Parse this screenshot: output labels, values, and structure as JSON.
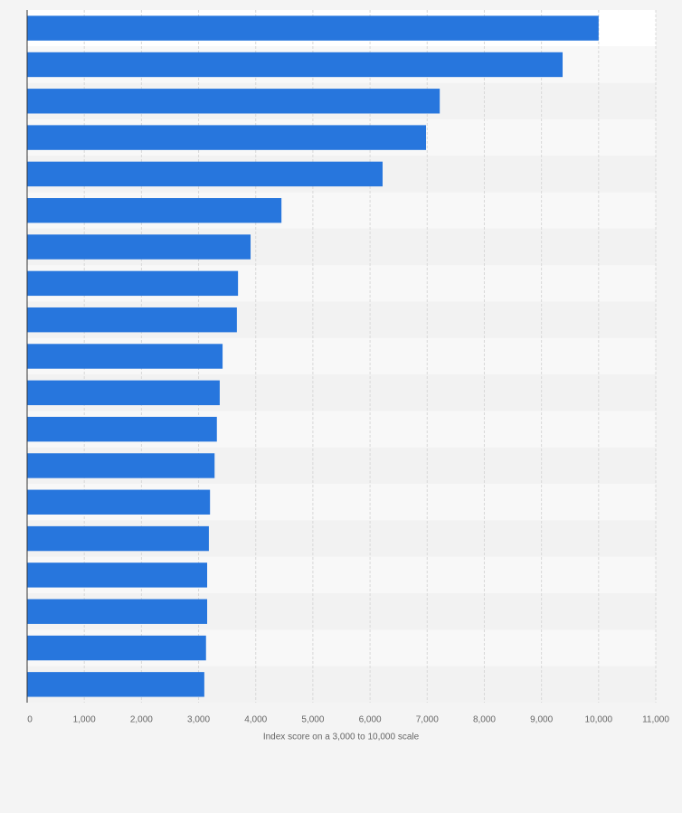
{
  "chart_data": {
    "type": "bar",
    "orientation": "horizontal",
    "categories": [
      null,
      null,
      null,
      null,
      null,
      null,
      null,
      null,
      null,
      null,
      null,
      null,
      null,
      null,
      null,
      null,
      null,
      null,
      null
    ],
    "values": [
      10000,
      9370,
      7220,
      6980,
      6220,
      4450,
      3910,
      3690,
      3670,
      3420,
      3370,
      3320,
      3280,
      3200,
      3180,
      3150,
      3150,
      3130,
      3100
    ],
    "color": "#2776dd",
    "xlim": [
      0,
      11000
    ],
    "xticks": [
      0,
      {
        "value": 1000,
        "label": "1,000"
      },
      {
        "value": 2000,
        "label": "2,000"
      },
      {
        "value": 3000,
        "label": "3,000"
      },
      {
        "value": 4000,
        "label": "4,000"
      },
      {
        "value": 5000,
        "label": "5,000"
      },
      {
        "value": 6000,
        "label": "6,000"
      },
      {
        "value": 7000,
        "label": "7,000"
      },
      {
        "value": 8000,
        "label": "8,000"
      },
      {
        "value": 9000,
        "label": "9,000"
      },
      {
        "value": 10000,
        "label": "10,000"
      },
      {
        "value": 11000,
        "label": "11,000"
      }
    ],
    "xlabel": "Index score on a 3,000 to 10,000 scale",
    "grid": true
  }
}
